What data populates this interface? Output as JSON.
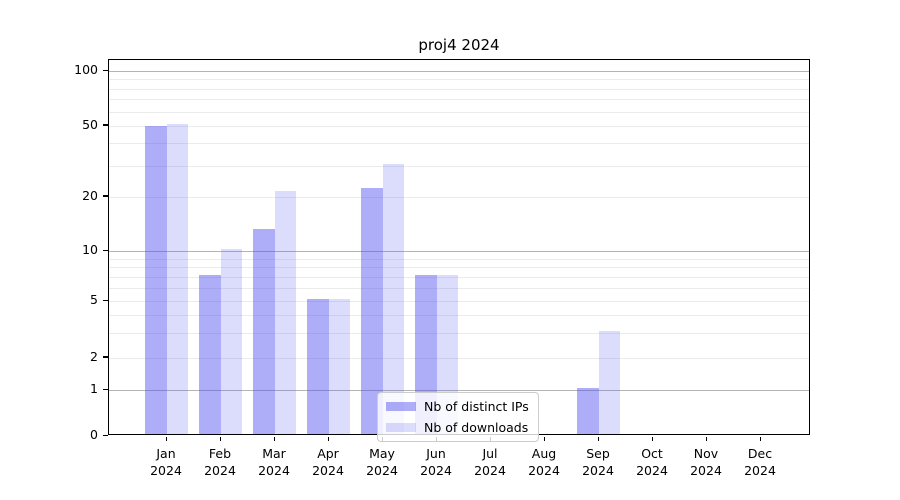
{
  "chart_data": {
    "type": "bar",
    "title": "proj4 2024",
    "categories": [
      "Jan 2024",
      "Feb 2024",
      "Mar 2024",
      "Apr 2024",
      "May 2024",
      "Jun 2024",
      "Jul 2024",
      "Aug 2024",
      "Sep 2024",
      "Oct 2024",
      "Nov 2024",
      "Dec 2024"
    ],
    "x_tick_labels": [
      {
        "month": "Jan",
        "year": "2024"
      },
      {
        "month": "Feb",
        "year": "2024"
      },
      {
        "month": "Mar",
        "year": "2024"
      },
      {
        "month": "Apr",
        "year": "2024"
      },
      {
        "month": "May",
        "year": "2024"
      },
      {
        "month": "Jun",
        "year": "2024"
      },
      {
        "month": "Jul",
        "year": "2024"
      },
      {
        "month": "Aug",
        "year": "2024"
      },
      {
        "month": "Sep",
        "year": "2024"
      },
      {
        "month": "Oct",
        "year": "2024"
      },
      {
        "month": "Nov",
        "year": "2024"
      },
      {
        "month": "Dec",
        "year": "2024"
      }
    ],
    "series": [
      {
        "name": "Nb of distinct IPs",
        "color": "rgba(80,80,240,0.47)",
        "values": [
          49,
          7,
          13,
          5,
          22,
          7,
          0,
          0,
          1,
          0,
          0,
          0
        ]
      },
      {
        "name": "Nb of downloads",
        "color": "rgba(80,80,240,0.20)",
        "values": [
          50,
          10,
          21,
          5,
          30,
          7,
          0,
          0,
          3,
          0,
          0,
          0
        ]
      }
    ],
    "y_axis": {
      "scale": "symlog",
      "ticks": [
        0,
        1,
        2,
        5,
        10,
        20,
        50,
        100
      ],
      "major_gridlines": [
        1,
        10,
        100
      ],
      "minor_gridlines": [
        2,
        3,
        4,
        5,
        6,
        7,
        8,
        9,
        20,
        30,
        40,
        50,
        60,
        70,
        80,
        90
      ],
      "range": [
        0,
        115
      ]
    },
    "legend": {
      "position": "lower center"
    },
    "grid": true,
    "colors": {
      "major_grid": "#b4b4b4",
      "minor_grid": "#ebebeb",
      "spine": "#000000",
      "background": "#ffffff"
    }
  }
}
